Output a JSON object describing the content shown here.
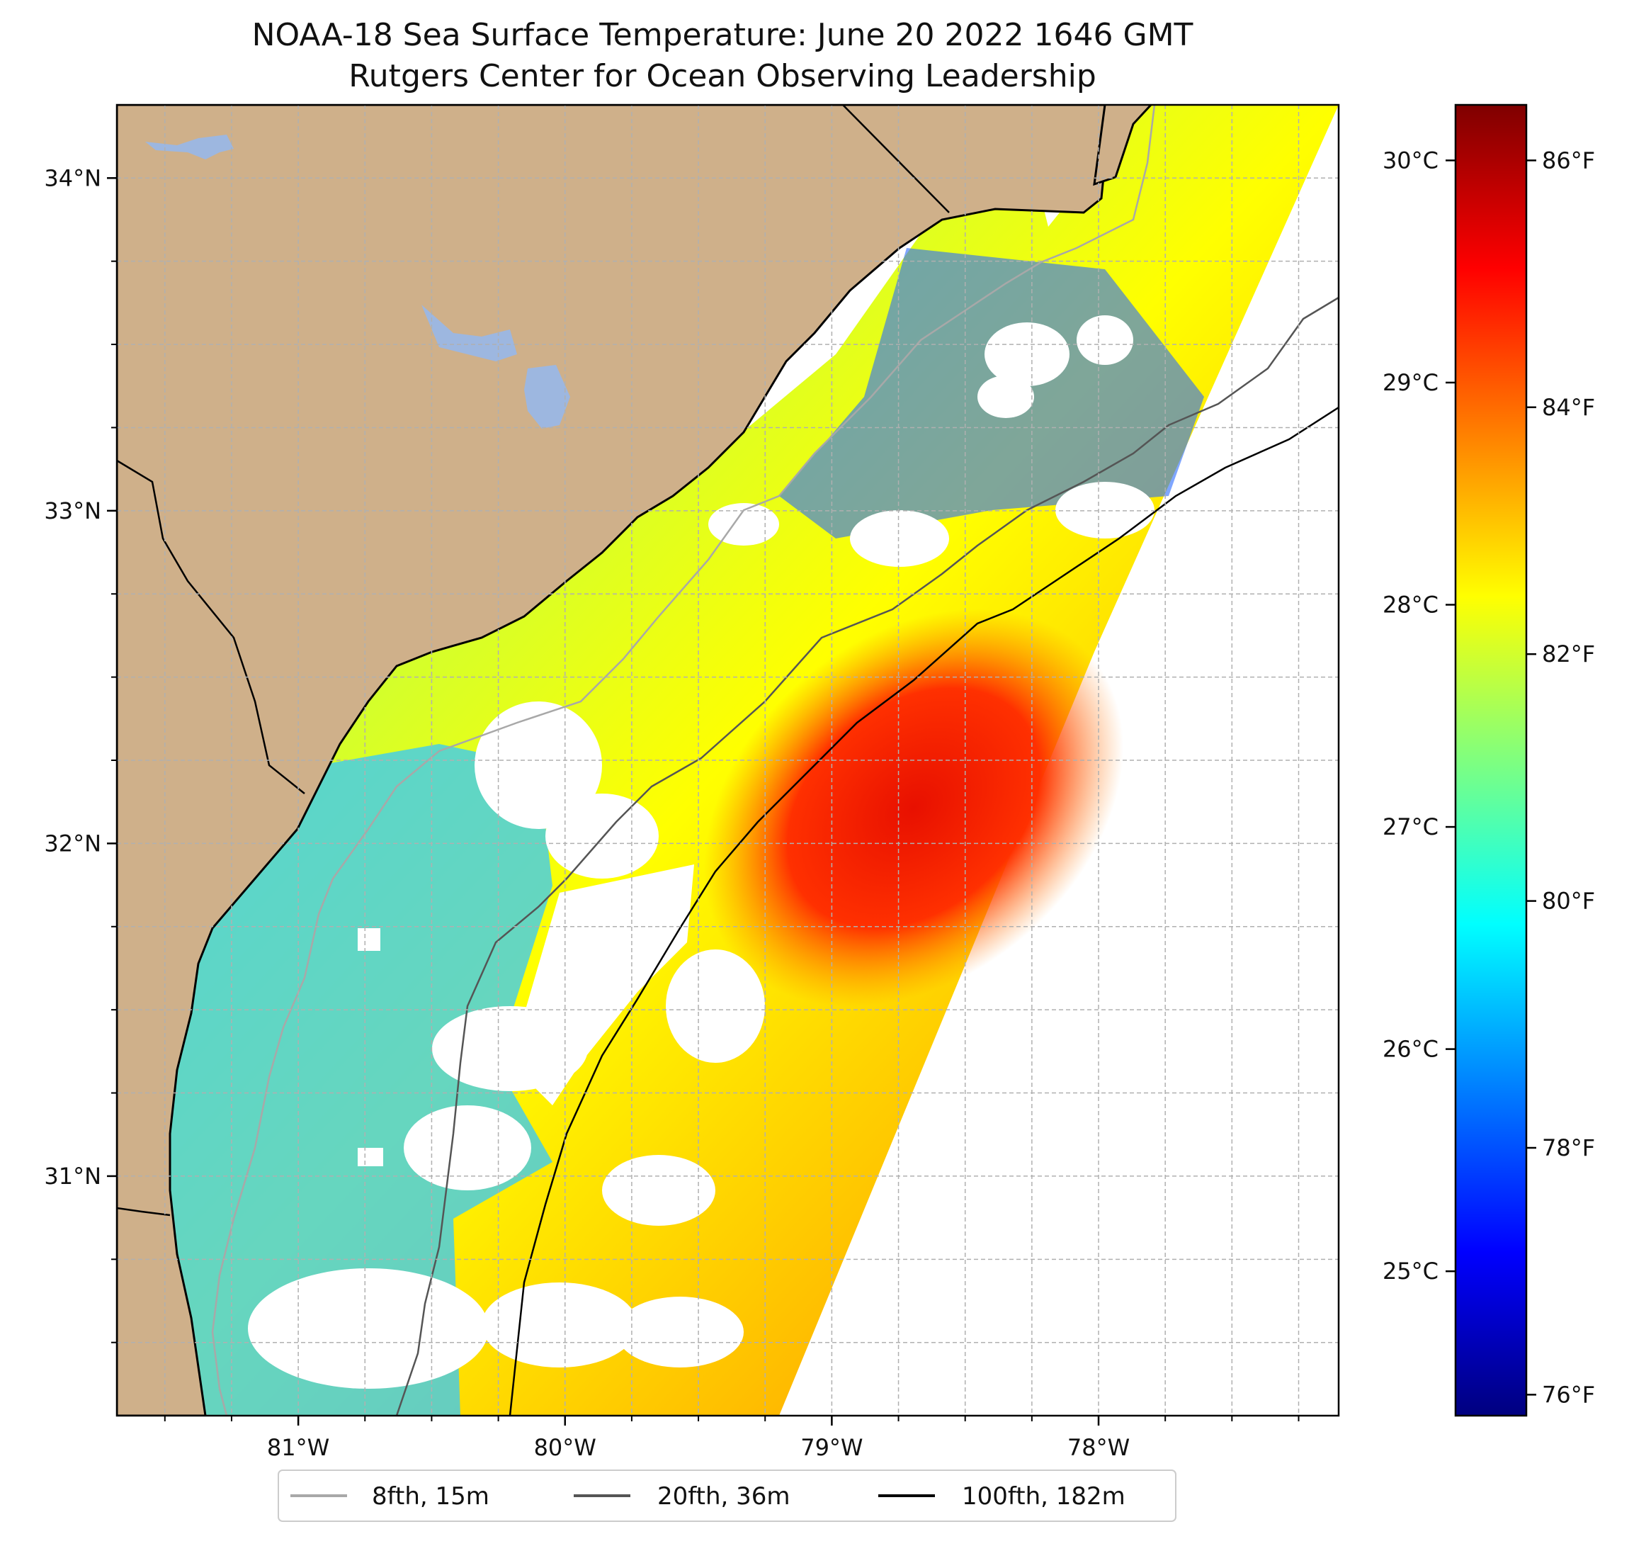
{
  "title": {
    "line1": "NOAA-18 Sea Surface Temperature: June 20 2022 1646 GMT",
    "line2": "Rutgers Center for Ocean Observing Leadership"
  },
  "colors": {
    "land": "#cfb08a",
    "lake": "#9db7e0",
    "coastline": "#000000",
    "grid": "#b0b0b0",
    "isobath_8fth": "#a8a8a8",
    "isobath_20fth": "#555555",
    "isobath_100fth": "#000000"
  },
  "map": {
    "lon_range": [
      -81.68,
      -77.1
    ],
    "lat_range": [
      30.28,
      34.22
    ],
    "lon_ticks": [
      {
        "value": -81,
        "label": "81°W"
      },
      {
        "value": -80,
        "label": "80°W"
      },
      {
        "value": -79,
        "label": "79°W"
      },
      {
        "value": -78,
        "label": "78°W"
      }
    ],
    "lat_ticks": [
      {
        "value": 31,
        "label": "31°N"
      },
      {
        "value": 32,
        "label": "32°N"
      },
      {
        "value": 33,
        "label": "33°N"
      },
      {
        "value": 34,
        "label": "34°N"
      }
    ]
  },
  "colorbar": {
    "celsius_range": [
      24.35,
      30.25
    ],
    "celsius_ticks": [
      {
        "value": 25,
        "label": "25°C"
      },
      {
        "value": 26,
        "label": "26°C"
      },
      {
        "value": 27,
        "label": "27°C"
      },
      {
        "value": 28,
        "label": "28°C"
      },
      {
        "value": 29,
        "label": "29°C"
      },
      {
        "value": 30,
        "label": "30°C"
      }
    ],
    "fahrenheit_ticks": [
      {
        "value": 76,
        "label": "76°F"
      },
      {
        "value": 78,
        "label": "78°F"
      },
      {
        "value": 80,
        "label": "80°F"
      },
      {
        "value": 82,
        "label": "82°F"
      },
      {
        "value": 84,
        "label": "84°F"
      },
      {
        "value": 86,
        "label": "86°F"
      }
    ],
    "gradient": [
      "#00007f",
      "#0000ff",
      "#007fff",
      "#00ffff",
      "#7fff7f",
      "#ffff00",
      "#ff7f00",
      "#ff0000",
      "#7f0000"
    ]
  },
  "legend": [
    {
      "label": "8fth, 15m",
      "color": "#a8a8a8"
    },
    {
      "label": "20fth, 36m",
      "color": "#555555"
    },
    {
      "label": "100fth, 182m",
      "color": "#000000"
    }
  ]
}
